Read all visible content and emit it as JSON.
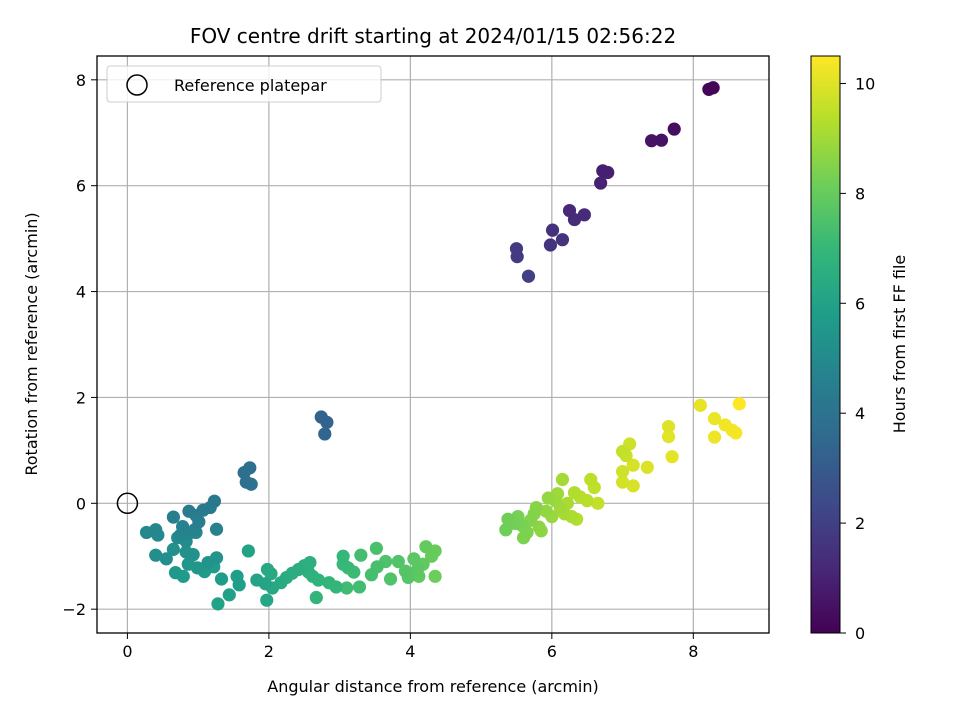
{
  "chart_data": {
    "type": "scatter",
    "title": "FOV centre drift starting at 2024/01/15 02:56:22",
    "xlabel": "Angular distance from reference (arcmin)",
    "ylabel": "Rotation from reference (arcmin)",
    "xlim": [
      -0.43,
      9.07
    ],
    "ylim": [
      -2.45,
      8.45
    ],
    "xticks": [
      "0",
      "2",
      "4",
      "6",
      "8"
    ],
    "yticks": [
      "−2",
      "0",
      "2",
      "4",
      "6",
      "8"
    ],
    "grid": true,
    "legend": {
      "position": "top-left",
      "entries": [
        "Reference platepar"
      ]
    },
    "reference_point": {
      "x": 0,
      "y": 0,
      "marker": "open-circle"
    },
    "colorbar": {
      "label": "Hours from first FF file",
      "range": [
        0,
        10.5
      ],
      "ticks": [
        "0",
        "2",
        "4",
        "6",
        "8",
        "10"
      ],
      "colormap": "viridis"
    },
    "points": [
      {
        "x": 8.28,
        "y": 7.85,
        "h": 0.1
      },
      {
        "x": 8.22,
        "y": 7.82,
        "h": 0.15
      },
      {
        "x": 7.73,
        "y": 7.07,
        "h": 0.4
      },
      {
        "x": 7.55,
        "y": 6.86,
        "h": 0.5
      },
      {
        "x": 7.41,
        "y": 6.85,
        "h": 0.55
      },
      {
        "x": 6.72,
        "y": 6.28,
        "h": 0.9
      },
      {
        "x": 6.79,
        "y": 6.25,
        "h": 0.95
      },
      {
        "x": 6.69,
        "y": 6.05,
        "h": 1.0
      },
      {
        "x": 6.25,
        "y": 5.53,
        "h": 1.2
      },
      {
        "x": 6.46,
        "y": 5.45,
        "h": 1.25
      },
      {
        "x": 6.32,
        "y": 5.36,
        "h": 1.3
      },
      {
        "x": 6.01,
        "y": 5.16,
        "h": 1.5
      },
      {
        "x": 6.15,
        "y": 4.98,
        "h": 1.55
      },
      {
        "x": 5.98,
        "y": 4.88,
        "h": 1.6
      },
      {
        "x": 5.5,
        "y": 4.81,
        "h": 1.8
      },
      {
        "x": 5.51,
        "y": 4.66,
        "h": 1.85
      },
      {
        "x": 5.67,
        "y": 4.29,
        "h": 2.0
      },
      {
        "x": 2.74,
        "y": 1.63,
        "h": 3.3
      },
      {
        "x": 2.82,
        "y": 1.53,
        "h": 3.35
      },
      {
        "x": 2.79,
        "y": 1.31,
        "h": 3.4
      },
      {
        "x": 1.65,
        "y": 0.58,
        "h": 3.8
      },
      {
        "x": 1.73,
        "y": 0.67,
        "h": 3.85
      },
      {
        "x": 1.68,
        "y": 0.4,
        "h": 3.9
      },
      {
        "x": 1.75,
        "y": 0.36,
        "h": 3.95
      },
      {
        "x": 1.23,
        "y": 0.04,
        "h": 4.2
      },
      {
        "x": 1.07,
        "y": -0.13,
        "h": 4.25
      },
      {
        "x": 1.17,
        "y": -0.08,
        "h": 4.3
      },
      {
        "x": 0.87,
        "y": -0.15,
        "h": 4.4
      },
      {
        "x": 0.97,
        "y": -0.23,
        "h": 4.45
      },
      {
        "x": 1.01,
        "y": -0.35,
        "h": 4.5
      },
      {
        "x": 0.65,
        "y": -0.26,
        "h": 4.55
      },
      {
        "x": 1.26,
        "y": -0.49,
        "h": 4.6
      },
      {
        "x": 0.78,
        "y": -0.44,
        "h": 4.65
      },
      {
        "x": 0.95,
        "y": -0.5,
        "h": 4.7
      },
      {
        "x": 0.88,
        "y": -0.56,
        "h": 4.75
      },
      {
        "x": 0.75,
        "y": -0.6,
        "h": 4.8
      },
      {
        "x": 0.4,
        "y": -0.5,
        "h": 4.85
      },
      {
        "x": 0.27,
        "y": -0.55,
        "h": 4.9
      },
      {
        "x": 0.43,
        "y": -0.6,
        "h": 4.95
      },
      {
        "x": 0.97,
        "y": -0.55,
        "h": 5.0
      },
      {
        "x": 0.71,
        "y": -0.65,
        "h": 5.05
      },
      {
        "x": 0.83,
        "y": -0.72,
        "h": 5.1
      },
      {
        "x": 0.4,
        "y": -0.98,
        "h": 5.15
      },
      {
        "x": 0.55,
        "y": -1.05,
        "h": 5.2
      },
      {
        "x": 0.65,
        "y": -0.87,
        "h": 5.25
      },
      {
        "x": 0.83,
        "y": -0.92,
        "h": 5.3
      },
      {
        "x": 0.93,
        "y": -0.97,
        "h": 5.35
      },
      {
        "x": 1.14,
        "y": -1.12,
        "h": 5.4
      },
      {
        "x": 1.26,
        "y": -1.03,
        "h": 5.45
      },
      {
        "x": 0.86,
        "y": -1.15,
        "h": 5.5
      },
      {
        "x": 0.99,
        "y": -1.22,
        "h": 5.55
      },
      {
        "x": 0.68,
        "y": -1.31,
        "h": 5.6
      },
      {
        "x": 0.79,
        "y": -1.38,
        "h": 5.65
      },
      {
        "x": 1.09,
        "y": -1.29,
        "h": 5.7
      },
      {
        "x": 1.22,
        "y": -1.2,
        "h": 5.75
      },
      {
        "x": 1.33,
        "y": -1.43,
        "h": 5.8
      },
      {
        "x": 1.55,
        "y": -1.38,
        "h": 5.85
      },
      {
        "x": 1.58,
        "y": -1.54,
        "h": 5.9
      },
      {
        "x": 1.44,
        "y": -1.73,
        "h": 5.95
      },
      {
        "x": 1.28,
        "y": -1.9,
        "h": 6.0
      },
      {
        "x": 1.71,
        "y": -0.9,
        "h": 6.05
      },
      {
        "x": 1.83,
        "y": -1.45,
        "h": 6.1
      },
      {
        "x": 1.95,
        "y": -1.52,
        "h": 6.15
      },
      {
        "x": 1.97,
        "y": -1.83,
        "h": 6.2
      },
      {
        "x": 2.05,
        "y": -1.6,
        "h": 6.25
      },
      {
        "x": 1.98,
        "y": -1.25,
        "h": 6.3
      },
      {
        "x": 2.03,
        "y": -1.33,
        "h": 6.35
      },
      {
        "x": 2.17,
        "y": -1.5,
        "h": 6.4
      },
      {
        "x": 2.25,
        "y": -1.4,
        "h": 6.45
      },
      {
        "x": 2.33,
        "y": -1.32,
        "h": 6.5
      },
      {
        "x": 2.42,
        "y": -1.25,
        "h": 6.55
      },
      {
        "x": 2.5,
        "y": -1.18,
        "h": 6.6
      },
      {
        "x": 2.58,
        "y": -1.12,
        "h": 6.65
      },
      {
        "x": 2.56,
        "y": -1.3,
        "h": 6.7
      },
      {
        "x": 2.62,
        "y": -1.38,
        "h": 6.75
      },
      {
        "x": 2.7,
        "y": -1.45,
        "h": 6.8
      },
      {
        "x": 2.67,
        "y": -1.78,
        "h": 6.85
      },
      {
        "x": 2.85,
        "y": -1.5,
        "h": 6.9
      },
      {
        "x": 2.95,
        "y": -1.58,
        "h": 6.95
      },
      {
        "x": 3.05,
        "y": -1.0,
        "h": 7.0
      },
      {
        "x": 3.05,
        "y": -1.15,
        "h": 7.05
      },
      {
        "x": 3.12,
        "y": -1.22,
        "h": 7.1
      },
      {
        "x": 3.2,
        "y": -1.3,
        "h": 7.15
      },
      {
        "x": 3.1,
        "y": -1.6,
        "h": 7.2
      },
      {
        "x": 3.28,
        "y": -1.58,
        "h": 7.25
      },
      {
        "x": 3.3,
        "y": -0.98,
        "h": 7.3
      },
      {
        "x": 3.45,
        "y": -1.35,
        "h": 7.35
      },
      {
        "x": 3.53,
        "y": -1.2,
        "h": 7.4
      },
      {
        "x": 3.52,
        "y": -0.85,
        "h": 7.45
      },
      {
        "x": 3.65,
        "y": -1.1,
        "h": 7.5
      },
      {
        "x": 3.72,
        "y": -1.43,
        "h": 7.55
      },
      {
        "x": 3.83,
        "y": -1.1,
        "h": 7.6
      },
      {
        "x": 3.93,
        "y": -1.28,
        "h": 7.65
      },
      {
        "x": 3.97,
        "y": -1.4,
        "h": 7.7
      },
      {
        "x": 4.05,
        "y": -1.05,
        "h": 7.75
      },
      {
        "x": 4.1,
        "y": -1.25,
        "h": 7.8
      },
      {
        "x": 4.12,
        "y": -1.38,
        "h": 7.85
      },
      {
        "x": 4.18,
        "y": -1.15,
        "h": 7.9
      },
      {
        "x": 4.22,
        "y": -0.82,
        "h": 7.95
      },
      {
        "x": 4.3,
        "y": -1.0,
        "h": 8.0
      },
      {
        "x": 4.35,
        "y": -0.9,
        "h": 8.05
      },
      {
        "x": 4.35,
        "y": -1.38,
        "h": 8.1
      },
      {
        "x": 5.35,
        "y": -0.5,
        "h": 8.15
      },
      {
        "x": 5.38,
        "y": -0.3,
        "h": 8.2
      },
      {
        "x": 5.48,
        "y": -0.38,
        "h": 8.25
      },
      {
        "x": 5.52,
        "y": -0.25,
        "h": 8.3
      },
      {
        "x": 5.58,
        "y": -0.42,
        "h": 8.35
      },
      {
        "x": 5.6,
        "y": -0.65,
        "h": 8.4
      },
      {
        "x": 5.65,
        "y": -0.55,
        "h": 8.45
      },
      {
        "x": 5.7,
        "y": -0.32,
        "h": 8.5
      },
      {
        "x": 5.75,
        "y": -0.2,
        "h": 8.55
      },
      {
        "x": 5.78,
        "y": -0.08,
        "h": 8.6
      },
      {
        "x": 5.82,
        "y": -0.45,
        "h": 8.65
      },
      {
        "x": 5.85,
        "y": -0.52,
        "h": 8.7
      },
      {
        "x": 5.92,
        "y": -0.15,
        "h": 8.75
      },
      {
        "x": 5.95,
        "y": 0.1,
        "h": 8.8
      },
      {
        "x": 6.0,
        "y": -0.25,
        "h": 8.85
      },
      {
        "x": 6.05,
        "y": 0.05,
        "h": 8.9
      },
      {
        "x": 6.08,
        "y": 0.18,
        "h": 8.95
      },
      {
        "x": 6.12,
        "y": -0.1,
        "h": 9.0
      },
      {
        "x": 6.15,
        "y": 0.45,
        "h": 9.05
      },
      {
        "x": 6.18,
        "y": -0.2,
        "h": 9.1
      },
      {
        "x": 6.22,
        "y": 0.0,
        "h": 9.15
      },
      {
        "x": 6.28,
        "y": -0.25,
        "h": 9.2
      },
      {
        "x": 6.32,
        "y": 0.2,
        "h": 9.25
      },
      {
        "x": 6.35,
        "y": -0.3,
        "h": 9.3
      },
      {
        "x": 6.4,
        "y": 0.12,
        "h": 9.35
      },
      {
        "x": 6.5,
        "y": 0.05,
        "h": 9.4
      },
      {
        "x": 6.55,
        "y": 0.45,
        "h": 9.45
      },
      {
        "x": 6.6,
        "y": 0.3,
        "h": 9.5
      },
      {
        "x": 6.65,
        "y": 0.0,
        "h": 9.55
      },
      {
        "x": 7.0,
        "y": 0.98,
        "h": 9.6
      },
      {
        "x": 7.05,
        "y": 0.9,
        "h": 9.65
      },
      {
        "x": 7.1,
        "y": 1.12,
        "h": 9.7
      },
      {
        "x": 7.0,
        "y": 0.6,
        "h": 9.75
      },
      {
        "x": 7.0,
        "y": 0.4,
        "h": 9.8
      },
      {
        "x": 7.15,
        "y": 0.72,
        "h": 9.85
      },
      {
        "x": 7.15,
        "y": 0.33,
        "h": 9.9
      },
      {
        "x": 7.35,
        "y": 0.68,
        "h": 9.95
      },
      {
        "x": 7.65,
        "y": 1.45,
        "h": 10.0
      },
      {
        "x": 7.65,
        "y": 1.26,
        "h": 10.05
      },
      {
        "x": 7.7,
        "y": 0.88,
        "h": 10.1
      },
      {
        "x": 8.1,
        "y": 1.85,
        "h": 10.15
      },
      {
        "x": 8.3,
        "y": 1.6,
        "h": 10.2
      },
      {
        "x": 8.3,
        "y": 1.25,
        "h": 10.25
      },
      {
        "x": 8.45,
        "y": 1.48,
        "h": 10.3
      },
      {
        "x": 8.55,
        "y": 1.38,
        "h": 10.35
      },
      {
        "x": 8.6,
        "y": 1.33,
        "h": 10.4
      },
      {
        "x": 8.65,
        "y": 1.88,
        "h": 10.5
      }
    ]
  }
}
